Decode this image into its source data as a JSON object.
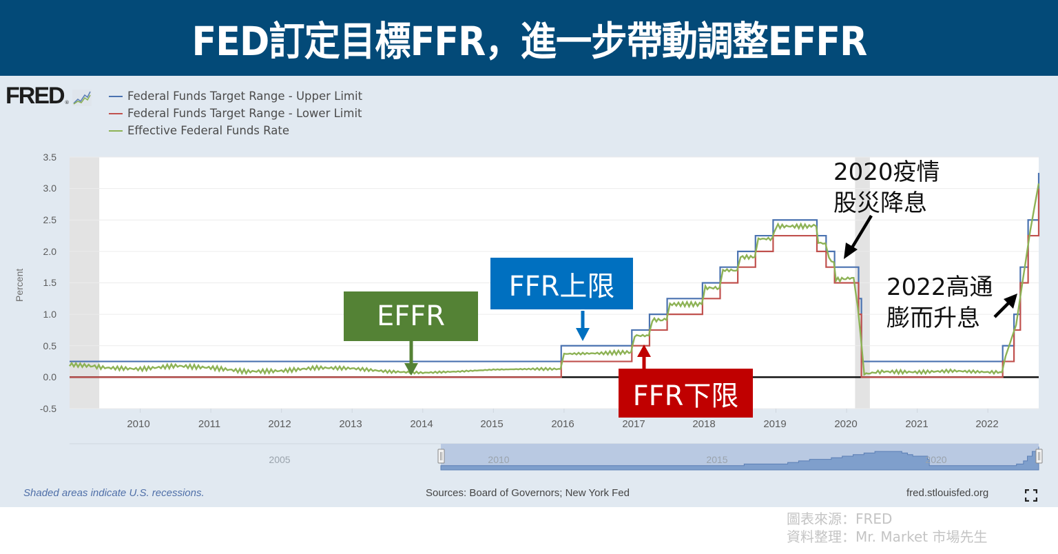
{
  "header": {
    "title": "FED訂定目標FFR，進一步帶動調整EFFR",
    "background": "#034a78"
  },
  "fred": {
    "logo_text": "FRED",
    "logo_registered": "®",
    "logo_icon": "line-chart-icon",
    "legend": [
      {
        "label": "Federal Funds Target Range - Upper Limit",
        "color": "#4a72b0"
      },
      {
        "label": "Federal Funds Target Range - Lower Limit",
        "color": "#c0504d"
      },
      {
        "label": "Effective Federal Funds Rate",
        "color": "#8db255"
      }
    ],
    "y_axis_title": "Percent",
    "y_ticks": [
      "3.5",
      "3.0",
      "2.5",
      "2.0",
      "1.5",
      "1.0",
      "0.5",
      "0.0",
      "-0.5"
    ],
    "x_ticks": [
      "2010",
      "2011",
      "2012",
      "2013",
      "2014",
      "2015",
      "2016",
      "2017",
      "2018",
      "2019",
      "2020",
      "2021",
      "2022"
    ],
    "navigator_labels": [
      "2005",
      "2010",
      "2015",
      "2020"
    ],
    "footer": {
      "recession_note": "Shaded areas indicate U.S. recessions.",
      "sources": "Sources: Board of Governors; New York Fed",
      "site": "fred.stlouisfed.org",
      "expand_icon": "fullscreen-icon"
    }
  },
  "annotations": {
    "effr_box": {
      "label": "EFFR",
      "color": "#548235"
    },
    "upper_box": {
      "label": "FFR上限",
      "color": "#0070c0"
    },
    "lower_box": {
      "label": "FFR下限",
      "color": "#c00000"
    },
    "note_2020": [
      "2020疫情",
      "股災降息"
    ],
    "note_2022": [
      "2022高通",
      "膨而升息"
    ]
  },
  "credit": {
    "line1": "圖表來源：FRED",
    "line2": "資料整理：Mr. Market 市場先生"
  },
  "chart_data": {
    "type": "line",
    "title": "FED訂定目標FFR，進一步帶動調整EFFR",
    "xlabel": "",
    "ylabel": "Percent",
    "ylim": [
      -0.5,
      3.5
    ],
    "xlim": [
      2009.0,
      2022.72
    ],
    "grid": true,
    "legend_position": "top-left",
    "recessions": [
      [
        2009.0,
        2009.42
      ],
      [
        2020.12,
        2020.33
      ]
    ],
    "series": [
      {
        "name": "Federal Funds Target Range - Upper Limit",
        "color": "#4a72b0",
        "step": true,
        "x": [
          2009.0,
          2015.96,
          2016.96,
          2017.21,
          2017.46,
          2017.96,
          2018.21,
          2018.46,
          2018.71,
          2018.96,
          2019.58,
          2019.71,
          2019.83,
          2020.17,
          2020.21,
          2022.21,
          2022.37,
          2022.46,
          2022.57,
          2022.72
        ],
        "values": [
          0.25,
          0.5,
          0.75,
          1.0,
          1.25,
          1.5,
          1.75,
          2.0,
          2.25,
          2.5,
          2.25,
          2.0,
          1.75,
          1.25,
          0.25,
          0.5,
          1.0,
          1.75,
          2.5,
          3.25
        ]
      },
      {
        "name": "Federal Funds Target Range - Lower Limit",
        "color": "#c0504d",
        "step": true,
        "x": [
          2009.0,
          2015.96,
          2016.96,
          2017.21,
          2017.46,
          2017.96,
          2018.21,
          2018.46,
          2018.71,
          2018.96,
          2019.58,
          2019.71,
          2019.83,
          2020.17,
          2020.21,
          2022.21,
          2022.37,
          2022.46,
          2022.57,
          2022.72
        ],
        "values": [
          0.0,
          0.25,
          0.5,
          0.75,
          1.0,
          1.25,
          1.5,
          1.75,
          2.0,
          2.25,
          2.0,
          1.75,
          1.5,
          1.0,
          0.0,
          0.25,
          0.75,
          1.5,
          2.25,
          3.0
        ]
      },
      {
        "name": "Effective Federal Funds Rate",
        "color": "#8db255",
        "x": [
          2009.0,
          2009.3,
          2009.5,
          2010.0,
          2010.5,
          2011.0,
          2011.5,
          2012.0,
          2012.5,
          2013.0,
          2013.5,
          2014.0,
          2014.5,
          2015.0,
          2015.5,
          2015.95,
          2016.0,
          2016.5,
          2016.95,
          2017.0,
          2017.2,
          2017.25,
          2017.45,
          2017.5,
          2017.95,
          2018.0,
          2018.2,
          2018.25,
          2018.45,
          2018.5,
          2018.7,
          2018.75,
          2018.95,
          2019.0,
          2019.5,
          2019.57,
          2019.6,
          2019.7,
          2019.75,
          2019.82,
          2019.85,
          2020.1,
          2020.16,
          2020.2,
          2020.25,
          2020.5,
          2021.0,
          2021.5,
          2022.0,
          2022.2,
          2022.25,
          2022.4,
          2022.5,
          2022.6,
          2022.72
        ],
        "values": [
          0.2,
          0.18,
          0.15,
          0.13,
          0.18,
          0.15,
          0.09,
          0.1,
          0.15,
          0.14,
          0.09,
          0.07,
          0.09,
          0.12,
          0.13,
          0.13,
          0.37,
          0.38,
          0.4,
          0.66,
          0.66,
          0.91,
          0.91,
          1.16,
          1.16,
          1.42,
          1.42,
          1.7,
          1.7,
          1.91,
          1.91,
          2.2,
          2.2,
          2.4,
          2.4,
          2.4,
          2.13,
          2.13,
          1.9,
          1.83,
          1.55,
          1.58,
          1.1,
          0.65,
          0.05,
          0.09,
          0.08,
          0.1,
          0.08,
          0.08,
          0.33,
          0.83,
          1.58,
          2.33,
          3.08
        ]
      }
    ]
  }
}
